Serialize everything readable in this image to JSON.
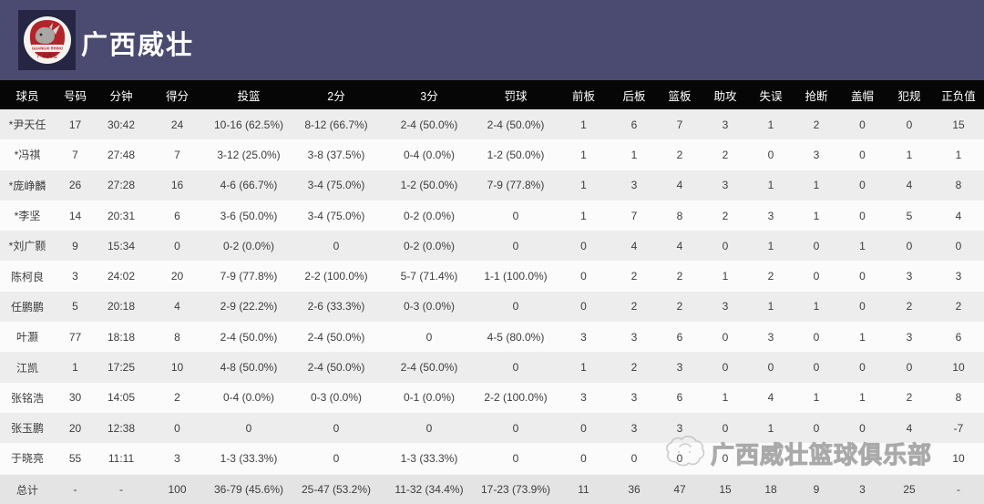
{
  "header": {
    "team_name": "广西威壮",
    "logo_title": "GUANGXI RHINO",
    "logo_subtitle": "广西威壮"
  },
  "table": {
    "columns": [
      "球员",
      "号码",
      "分钟",
      "得分",
      "投篮",
      "2分",
      "3分",
      "罚球",
      "前板",
      "后板",
      "篮板",
      "助攻",
      "失误",
      "抢断",
      "盖帽",
      "犯规",
      "正负值"
    ],
    "rows": [
      [
        "*尹天任",
        "17",
        "30:42",
        "24",
        "10-16 (62.5%)",
        "8-12 (66.7%)",
        "2-4 (50.0%)",
        "2-4 (50.0%)",
        "1",
        "6",
        "7",
        "3",
        "1",
        "2",
        "0",
        "0",
        "15"
      ],
      [
        "*冯祺",
        "7",
        "27:48",
        "7",
        "3-12 (25.0%)",
        "3-8 (37.5%)",
        "0-4 (0.0%)",
        "1-2 (50.0%)",
        "1",
        "1",
        "2",
        "2",
        "0",
        "3",
        "0",
        "1",
        "1"
      ],
      [
        "*庞峥麟",
        "26",
        "27:28",
        "16",
        "4-6 (66.7%)",
        "3-4 (75.0%)",
        "1-2 (50.0%)",
        "7-9 (77.8%)",
        "1",
        "3",
        "4",
        "3",
        "1",
        "1",
        "0",
        "4",
        "8"
      ],
      [
        "*李坚",
        "14",
        "20:31",
        "6",
        "3-6 (50.0%)",
        "3-4 (75.0%)",
        "0-2 (0.0%)",
        "0",
        "1",
        "7",
        "8",
        "2",
        "3",
        "1",
        "0",
        "5",
        "4"
      ],
      [
        "*刘广颢",
        "9",
        "15:34",
        "0",
        "0-2 (0.0%)",
        "0",
        "0-2 (0.0%)",
        "0",
        "0",
        "4",
        "4",
        "0",
        "1",
        "0",
        "1",
        "0",
        "0"
      ],
      [
        "陈柯良",
        "3",
        "24:02",
        "20",
        "7-9 (77.8%)",
        "2-2 (100.0%)",
        "5-7 (71.4%)",
        "1-1 (100.0%)",
        "0",
        "2",
        "2",
        "1",
        "2",
        "0",
        "0",
        "3",
        "3"
      ],
      [
        "任鹏鹏",
        "5",
        "20:18",
        "4",
        "2-9 (22.2%)",
        "2-6 (33.3%)",
        "0-3 (0.0%)",
        "0",
        "0",
        "2",
        "2",
        "3",
        "1",
        "1",
        "0",
        "2",
        "2"
      ],
      [
        "叶灏",
        "77",
        "18:18",
        "8",
        "2-4 (50.0%)",
        "2-4 (50.0%)",
        "0",
        "4-5 (80.0%)",
        "3",
        "3",
        "6",
        "0",
        "3",
        "0",
        "1",
        "3",
        "6"
      ],
      [
        "江凯",
        "1",
        "17:25",
        "10",
        "4-8 (50.0%)",
        "2-4 (50.0%)",
        "2-4 (50.0%)",
        "0",
        "1",
        "2",
        "3",
        "0",
        "0",
        "0",
        "0",
        "0",
        "10"
      ],
      [
        "张铭浩",
        "30",
        "14:05",
        "2",
        "0-4 (0.0%)",
        "0-3 (0.0%)",
        "0-1 (0.0%)",
        "2-2 (100.0%)",
        "3",
        "3",
        "6",
        "1",
        "4",
        "1",
        "1",
        "2",
        "8"
      ],
      [
        "张玉鹏",
        "20",
        "12:38",
        "0",
        "0",
        "0",
        "0",
        "0",
        "0",
        "3",
        "3",
        "0",
        "1",
        "0",
        "0",
        "4",
        "-7"
      ],
      [
        "于晓亮",
        "55",
        "11:11",
        "3",
        "1-3 (33.3%)",
        "0",
        "1-3 (33.3%)",
        "0",
        "0",
        "0",
        "0",
        "0",
        "",
        "",
        "",
        "",
        "10"
      ]
    ],
    "total_row": [
      "总计",
      "-",
      "-",
      "100",
      "36-79 (45.6%)",
      "25-47 (53.2%)",
      "11-32 (34.4%)",
      "17-23 (73.9%)",
      "11",
      "36",
      "47",
      "15",
      "18",
      "9",
      "3",
      "25",
      "-"
    ]
  },
  "watermark": {
    "text": "广西威壮篮球俱乐部",
    "icon": "rhino-outline-icon"
  },
  "colors": {
    "banner_bg": "#4b4a70",
    "logo_tile_bg": "#262543",
    "logo_red": "#b3242a",
    "table_header_bg": "#060606",
    "row_alt": "#ededed",
    "row_base": "#fbfbfb",
    "total_row_bg": "#e4e4e4",
    "text": "#3d3d3d"
  }
}
